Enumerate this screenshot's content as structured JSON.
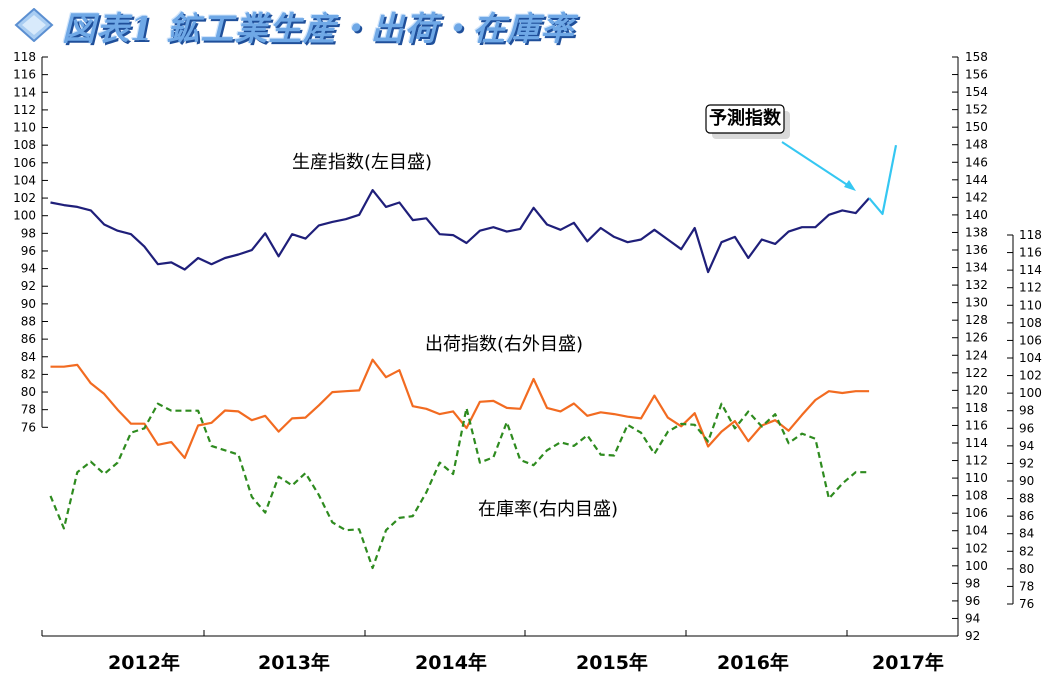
{
  "title": "図表1 鉱工業生産・出荷・在庫率",
  "chart_data": {
    "type": "line",
    "x_labels": [
      "2012年",
      "2013年",
      "2014年",
      "2015年",
      "2016年",
      "2017年"
    ],
    "left_axis": {
      "ylim": [
        76,
        118
      ],
      "ticks": [
        76,
        78,
        80,
        82,
        84,
        86,
        88,
        90,
        92,
        94,
        96,
        98,
        100,
        102,
        104,
        106,
        108,
        110,
        112,
        114,
        116,
        118
      ]
    },
    "right_outer_axis": {
      "ylim": [
        92,
        158
      ],
      "ticks": [
        92,
        94,
        96,
        98,
        100,
        102,
        104,
        106,
        108,
        110,
        112,
        114,
        116,
        118,
        120,
        122,
        124,
        126,
        128,
        130,
        132,
        134,
        136,
        138,
        140,
        142,
        144,
        146,
        148,
        150,
        152,
        154,
        156,
        158
      ]
    },
    "right_inner_axis": {
      "ylim": [
        76,
        118
      ],
      "ticks": [
        76,
        78,
        80,
        82,
        84,
        86,
        88,
        90,
        92,
        94,
        96,
        98,
        100,
        102,
        104,
        106,
        108,
        110,
        112,
        114,
        116,
        118
      ]
    },
    "series": [
      {
        "name": "生産指数(左目盛)",
        "axis": "left",
        "color": "#1f1f7a",
        "style": "solid",
        "values": [
          101.5,
          101.2,
          101.0,
          100.6,
          99.0,
          98.3,
          97.9,
          96.5,
          94.5,
          94.7,
          93.9,
          95.2,
          94.5,
          95.2,
          95.6,
          96.1,
          98.0,
          95.4,
          97.9,
          97.4,
          98.9,
          99.3,
          99.6,
          100.1,
          102.9,
          101.0,
          101.5,
          99.5,
          99.7,
          97.9,
          97.8,
          96.9,
          98.3,
          98.7,
          98.2,
          98.5,
          100.9,
          99.0,
          98.4,
          99.2,
          97.1,
          98.6,
          97.6,
          97.0,
          97.3,
          98.4,
          97.3,
          96.2,
          98.6,
          93.6,
          97.0,
          97.6,
          95.2,
          97.3,
          96.8,
          98.2,
          98.7,
          98.7,
          100.1,
          100.6,
          100.3,
          102.0
        ]
      },
      {
        "name": "予測指数",
        "axis": "left",
        "color": "#35c7f2",
        "style": "solid",
        "values": [
          102.0,
          100.2,
          108.0
        ]
      },
      {
        "name": "出荷指数(右外目盛)",
        "axis": "right_outer",
        "color": "#f26b21",
        "style": "solid",
        "values": [
          122.7,
          122.7,
          122.9,
          120.8,
          119.6,
          117.8,
          116.2,
          116.2,
          113.8,
          114.1,
          112.3,
          116.0,
          116.3,
          117.7,
          117.6,
          116.6,
          117.1,
          115.3,
          116.8,
          116.9,
          118.3,
          119.8,
          119.9,
          120.0,
          123.5,
          121.5,
          122.3,
          118.2,
          117.9,
          117.3,
          117.6,
          115.7,
          118.7,
          118.8,
          118.0,
          117.9,
          121.3,
          118.0,
          117.6,
          118.5,
          117.1,
          117.5,
          117.3,
          117.0,
          116.8,
          119.4,
          116.9,
          115.9,
          117.4,
          113.6,
          115.3,
          116.5,
          114.2,
          116.0,
          116.6,
          115.4,
          117.2,
          118.9,
          119.9,
          119.7,
          119.9,
          119.9
        ]
      },
      {
        "name": "在庫率(右内目盛)",
        "axis": "right_inner",
        "color": "#2e8b1f",
        "style": "dashed",
        "values": [
          88.3,
          84.6,
          91.0,
          92.2,
          90.8,
          92.1,
          95.5,
          96.0,
          98.8,
          98.0,
          98.0,
          98.0,
          94.0,
          93.5,
          93.0,
          88.2,
          86.4,
          90.5,
          89.5,
          90.9,
          88.4,
          85.3,
          84.4,
          84.5,
          80.1,
          84.4,
          85.8,
          86.0,
          88.7,
          92.1,
          90.8,
          98.3,
          92.1,
          92.7,
          96.7,
          92.4,
          91.8,
          93.5,
          94.4,
          94.0,
          95.2,
          93.0,
          92.9,
          96.4,
          95.5,
          93.1,
          95.6,
          96.5,
          96.4,
          94.5,
          98.8,
          96.0,
          97.9,
          96.2,
          97.6,
          94.3,
          95.4,
          94.8,
          88.0,
          89.7,
          91.0,
          91.0
        ]
      }
    ],
    "annotations": [
      {
        "id": "production",
        "text": "生産指数(左目盛)"
      },
      {
        "id": "shipment",
        "text": "出荷指数(右外目盛)"
      },
      {
        "id": "inventory",
        "text": "在庫率(右内目盛)"
      },
      {
        "id": "forecast",
        "text": "予測指数"
      }
    ],
    "grid": false
  }
}
